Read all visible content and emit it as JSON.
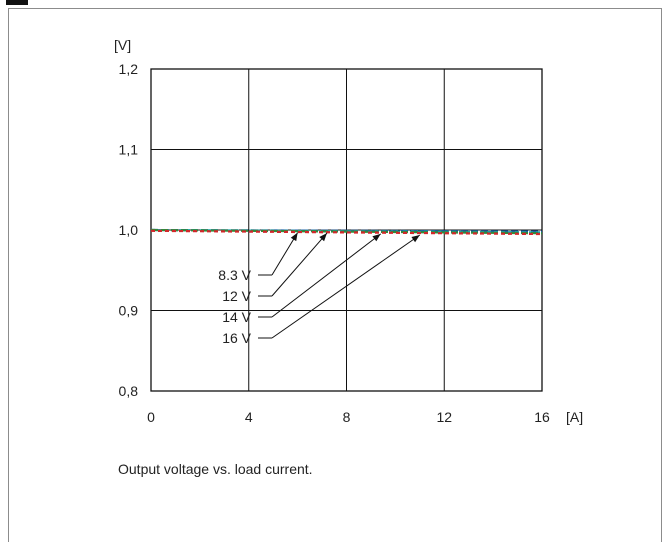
{
  "caption": "Output voltage vs. load current.",
  "chart_data": {
    "type": "line",
    "title": "",
    "xlabel": "[A]",
    "ylabel": "[V]",
    "xlim": [
      0,
      16
    ],
    "ylim": [
      0.8,
      1.2
    ],
    "x_ticks": [
      0,
      4,
      8,
      12,
      16
    ],
    "x_tick_labels": [
      "0",
      "4",
      "8",
      "12",
      "16"
    ],
    "y_ticks": [
      0.8,
      0.9,
      1.0,
      1.1,
      1.2
    ],
    "y_tick_labels": [
      "0,8",
      "0,9",
      "1,0",
      "1,1",
      "1,2"
    ],
    "grid": true,
    "legend": "annotations with arrows",
    "series": [
      {
        "name": "8.3 V",
        "color": "#1f5fa8",
        "x": [
          0,
          16
        ],
        "y": [
          1.0,
          0.998
        ]
      },
      {
        "name": "12 V",
        "color": "#19a0a6",
        "x": [
          0,
          16
        ],
        "y": [
          1.0,
          0.997
        ]
      },
      {
        "name": "14 V",
        "color": "#2e8b3a",
        "x": [
          0,
          16
        ],
        "y": [
          1.0,
          0.996
        ]
      },
      {
        "name": "16 V",
        "color": "#d2272a",
        "x": [
          0,
          16
        ],
        "y": [
          0.999,
          0.995
        ]
      }
    ],
    "annotations": [
      {
        "label": "8.3 V",
        "target_x": 6.0
      },
      {
        "label": "12 V",
        "target_x": 7.2
      },
      {
        "label": "14 V",
        "target_x": 9.4
      },
      {
        "label": "16 V",
        "target_x": 11.0
      }
    ]
  }
}
